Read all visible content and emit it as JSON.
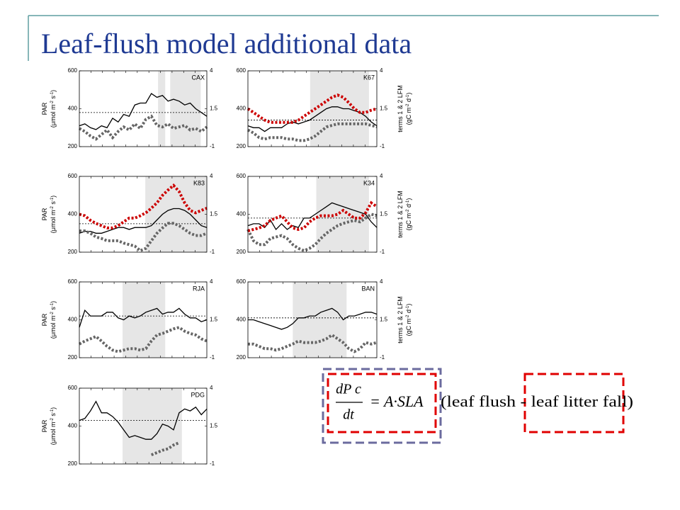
{
  "title": "Leaf-flush model additional data",
  "equation": {
    "numerator": "dP c",
    "denominator": "dt",
    "rhs": "= A·SLA",
    "bracket": "(leaf flush - leaf litter fall)"
  },
  "chart_data": [
    {
      "type": "line",
      "label": "CAX",
      "ylim": [
        200,
        600
      ],
      "yticks": [
        200,
        400,
        600
      ],
      "y2lim": [
        -1,
        4
      ],
      "y2ticks": [
        -1,
        1.5,
        4
      ],
      "ylabel": [
        "PAR",
        "(μmol m",
        "-2",
        " s",
        "-1",
        ")"
      ],
      "hline": 380,
      "highlight_x": [
        [
          14.2,
          15.5
        ],
        [
          16.4,
          21.9
        ]
      ],
      "series": [
        {
          "color": "#000000",
          "style": "solid",
          "axis": "y",
          "values": [
            310,
            320,
            300,
            290,
            310,
            300,
            350,
            330,
            370,
            360,
            420,
            430,
            430,
            480,
            460,
            470,
            440,
            450,
            440,
            420,
            430,
            400,
            380,
            360
          ]
        },
        {
          "color": "#666666",
          "style": "dotted",
          "axis": "y2",
          "values": [
            0.2,
            0.0,
            -0.3,
            -0.5,
            -0.2,
            0.1,
            -0.4,
            0.0,
            0.3,
            0.1,
            0.5,
            0.2,
            0.8,
            1.0,
            0.4,
            0.3,
            0.5,
            0.2,
            0.3,
            0.4,
            0.1,
            0.2,
            0.0,
            0.3
          ]
        }
      ]
    },
    {
      "type": "line",
      "label": "K67",
      "ylim": [
        200,
        600
      ],
      "yticks": [
        200,
        400,
        600
      ],
      "y2lim": [
        -1,
        4
      ],
      "y2ticks": [
        -1,
        1.5,
        4
      ],
      "y2label": [
        "terms 1 & 2 LFM",
        "(gC m",
        "-2",
        " d",
        "-1",
        ")"
      ],
      "hline": 340,
      "highlight_x": [
        [
          11.1,
          21.6
        ]
      ],
      "series": [
        {
          "color": "#000000",
          "style": "solid",
          "axis": "y",
          "values": [
            310,
            300,
            300,
            280,
            300,
            300,
            300,
            320,
            330,
            320,
            330,
            340,
            360,
            380,
            400,
            410,
            410,
            400,
            400,
            390,
            380,
            360,
            330,
            310
          ]
        },
        {
          "color": "#666666",
          "style": "dotted",
          "axis": "y2",
          "values": [
            0.1,
            -0.1,
            -0.4,
            -0.5,
            -0.4,
            -0.4,
            -0.4,
            -0.5,
            -0.5,
            -0.6,
            -0.6,
            -0.5,
            -0.3,
            0.0,
            0.3,
            0.4,
            0.5,
            0.5,
            0.5,
            0.5,
            0.5,
            0.5,
            0.4,
            0.3
          ]
        },
        {
          "color": "#cc0000",
          "style": "dotted",
          "axis": "y2",
          "values": [
            1.5,
            1.25,
            1.0,
            0.75,
            0.6,
            0.6,
            0.6,
            0.6,
            0.6,
            0.75,
            1.0,
            1.25,
            1.5,
            1.75,
            2.0,
            2.25,
            2.4,
            2.25,
            1.9,
            1.5,
            1.25,
            1.25,
            1.4,
            1.5
          ]
        }
      ]
    },
    {
      "type": "line",
      "label": "K83",
      "ylim": [
        200,
        600
      ],
      "yticks": [
        200,
        400,
        600
      ],
      "y2lim": [
        -1,
        4
      ],
      "y2ticks": [
        -1,
        1.5,
        4
      ],
      "ylabel": [
        "PAR",
        "(μmol m",
        "-2",
        " s",
        "-1",
        ")"
      ],
      "hline": 350,
      "highlight_x": [
        [
          11.9,
          23
        ]
      ],
      "series": [
        {
          "color": "#000000",
          "style": "solid",
          "axis": "y",
          "values": [
            300,
            310,
            310,
            300,
            300,
            310,
            320,
            330,
            330,
            320,
            330,
            330,
            330,
            340,
            370,
            400,
            420,
            430,
            430,
            420,
            400,
            370,
            340,
            330
          ]
        },
        {
          "color": "#666666",
          "style": "dotted",
          "axis": "y2",
          "values": [
            0.4,
            0.4,
            0.25,
            0.0,
            -0.1,
            -0.25,
            -0.25,
            -0.25,
            -0.4,
            -0.5,
            -0.6,
            -0.9,
            -0.75,
            -0.25,
            0.25,
            0.6,
            0.9,
            0.9,
            0.75,
            0.5,
            0.25,
            0.1,
            0.1,
            0.25
          ]
        },
        {
          "color": "#cc0000",
          "style": "dotted",
          "axis": "y2",
          "values": [
            1.5,
            1.4,
            1.1,
            0.9,
            0.75,
            0.6,
            0.6,
            0.75,
            1.0,
            1.25,
            1.25,
            1.4,
            1.6,
            1.9,
            2.25,
            2.75,
            3.1,
            3.4,
            3.0,
            2.25,
            1.75,
            1.6,
            1.75,
            1.9
          ]
        }
      ]
    },
    {
      "type": "line",
      "label": "K34",
      "ylim": [
        200,
        600
      ],
      "yticks": [
        200,
        400,
        600
      ],
      "y2lim": [
        -1,
        4
      ],
      "y2ticks": [
        -1,
        1.5,
        4
      ],
      "y2label": [
        "terms 1 & 2 LFM",
        "(gC m",
        "-2",
        " d",
        "-1",
        ")"
      ],
      "hline": 380,
      "highlight_x": [
        [
          12.2,
          21.6
        ]
      ],
      "series": [
        {
          "color": "#000000",
          "style": "solid",
          "axis": "y",
          "values": [
            340,
            350,
            350,
            330,
            370,
            320,
            350,
            320,
            340,
            330,
            380,
            380,
            400,
            420,
            440,
            460,
            450,
            440,
            430,
            420,
            410,
            400,
            360,
            330
          ]
        },
        {
          "color": "#666666",
          "style": "dotted",
          "axis": "y2",
          "values": [
            0.5,
            -0.25,
            -0.5,
            -0.5,
            -0.1,
            0,
            0.1,
            -0.1,
            -0.5,
            -0.75,
            -0.9,
            -0.75,
            -0.5,
            -0.1,
            0.25,
            0.5,
            0.75,
            0.9,
            1.0,
            1.1,
            1.0,
            1.25,
            1.5,
            1.4
          ]
        },
        {
          "color": "#cc0000",
          "style": "dotted",
          "axis": "y2",
          "values": [
            0.4,
            0.5,
            0.6,
            0.75,
            1.1,
            1.25,
            1.4,
            1.0,
            0.6,
            0.5,
            0.6,
            1.0,
            1.25,
            1.4,
            1.4,
            1.4,
            1.5,
            1.75,
            1.5,
            1.25,
            1.25,
            1.6,
            2.25,
            2.0
          ]
        }
      ]
    },
    {
      "type": "line",
      "label": "RJA",
      "ylim": [
        200,
        600
      ],
      "yticks": [
        200,
        400,
        600
      ],
      "y2lim": [
        -1,
        4
      ],
      "y2ticks": [
        -1,
        1.5,
        4
      ],
      "ylabel": [
        "PAR",
        "(μmol m",
        "-2",
        " s",
        "-1",
        ")"
      ],
      "hline": 420,
      "highlight_x": [
        [
          7.8,
          15.5
        ]
      ],
      "series": [
        {
          "color": "#000000",
          "style": "solid",
          "axis": "y",
          "values": [
            360,
            450,
            420,
            420,
            420,
            440,
            440,
            410,
            400,
            420,
            410,
            420,
            440,
            450,
            460,
            430,
            440,
            440,
            460,
            430,
            410,
            410,
            390,
            400
          ]
        },
        {
          "color": "#666666",
          "style": "dotted",
          "axis": "y2",
          "values": [
            -0.1,
            0.1,
            0.25,
            0.4,
            0.1,
            -0.25,
            -0.5,
            -0.6,
            -0.5,
            -0.4,
            -0.4,
            -0.5,
            -0.4,
            0.1,
            0.5,
            0.6,
            0.75,
            0.9,
            1.0,
            0.75,
            0.6,
            0.5,
            0.25,
            0.1
          ]
        }
      ]
    },
    {
      "type": "line",
      "label": "BAN",
      "ylim": [
        200,
        600
      ],
      "yticks": [
        200,
        400,
        600
      ],
      "y2lim": [
        -1,
        4
      ],
      "y2ticks": [
        -1,
        1.5,
        4
      ],
      "y2label": [
        "terms 1 & 2 LFM",
        "(gC m",
        "-2",
        " d",
        "-1",
        ")"
      ],
      "hline": 410,
      "highlight_x": [
        [
          8.0,
          17.6
        ]
      ],
      "series": [
        {
          "color": "#000000",
          "style": "solid",
          "axis": "y",
          "values": [
            400,
            400,
            390,
            380,
            370,
            360,
            350,
            360,
            380,
            410,
            410,
            420,
            420,
            440,
            450,
            460,
            440,
            400,
            420,
            420,
            430,
            440,
            440,
            430
          ]
        },
        {
          "color": "#666666",
          "style": "dotted",
          "axis": "y2",
          "values": [
            -0.1,
            -0.1,
            -0.25,
            -0.4,
            -0.4,
            -0.5,
            -0.4,
            -0.25,
            -0.1,
            0.1,
            0,
            0,
            0,
            0.1,
            0.25,
            0.5,
            0.25,
            0,
            -0.4,
            -0.6,
            -0.4,
            0,
            -0.1,
            0
          ]
        }
      ]
    },
    {
      "type": "line",
      "label": "PDG",
      "ylim": [
        200,
        600
      ],
      "yticks": [
        200,
        400,
        600
      ],
      "y2lim": [
        -1,
        4
      ],
      "y2ticks": [
        -1,
        1.5,
        4
      ],
      "ylabel": [
        "PAR",
        "(μmol m",
        "-2",
        " s",
        "-1",
        ")"
      ],
      "hline": 430,
      "highlight_x": [
        [
          7.8,
          18.5
        ]
      ],
      "series": [
        {
          "color": "#000000",
          "style": "solid",
          "axis": "y",
          "values": [
            430,
            440,
            480,
            530,
            470,
            470,
            450,
            420,
            380,
            340,
            350,
            340,
            330,
            330,
            360,
            410,
            400,
            380,
            470,
            490,
            480,
            500,
            460,
            490
          ]
        },
        {
          "color": "#666666",
          "style": "dotted",
          "axis": "y2",
          "values": [
            null,
            null,
            null,
            null,
            null,
            null,
            null,
            null,
            null,
            null,
            null,
            null,
            null,
            -0.4,
            -0.25,
            -0.1,
            0,
            0.25,
            0.4,
            null,
            null,
            null,
            null,
            null
          ]
        }
      ]
    }
  ]
}
